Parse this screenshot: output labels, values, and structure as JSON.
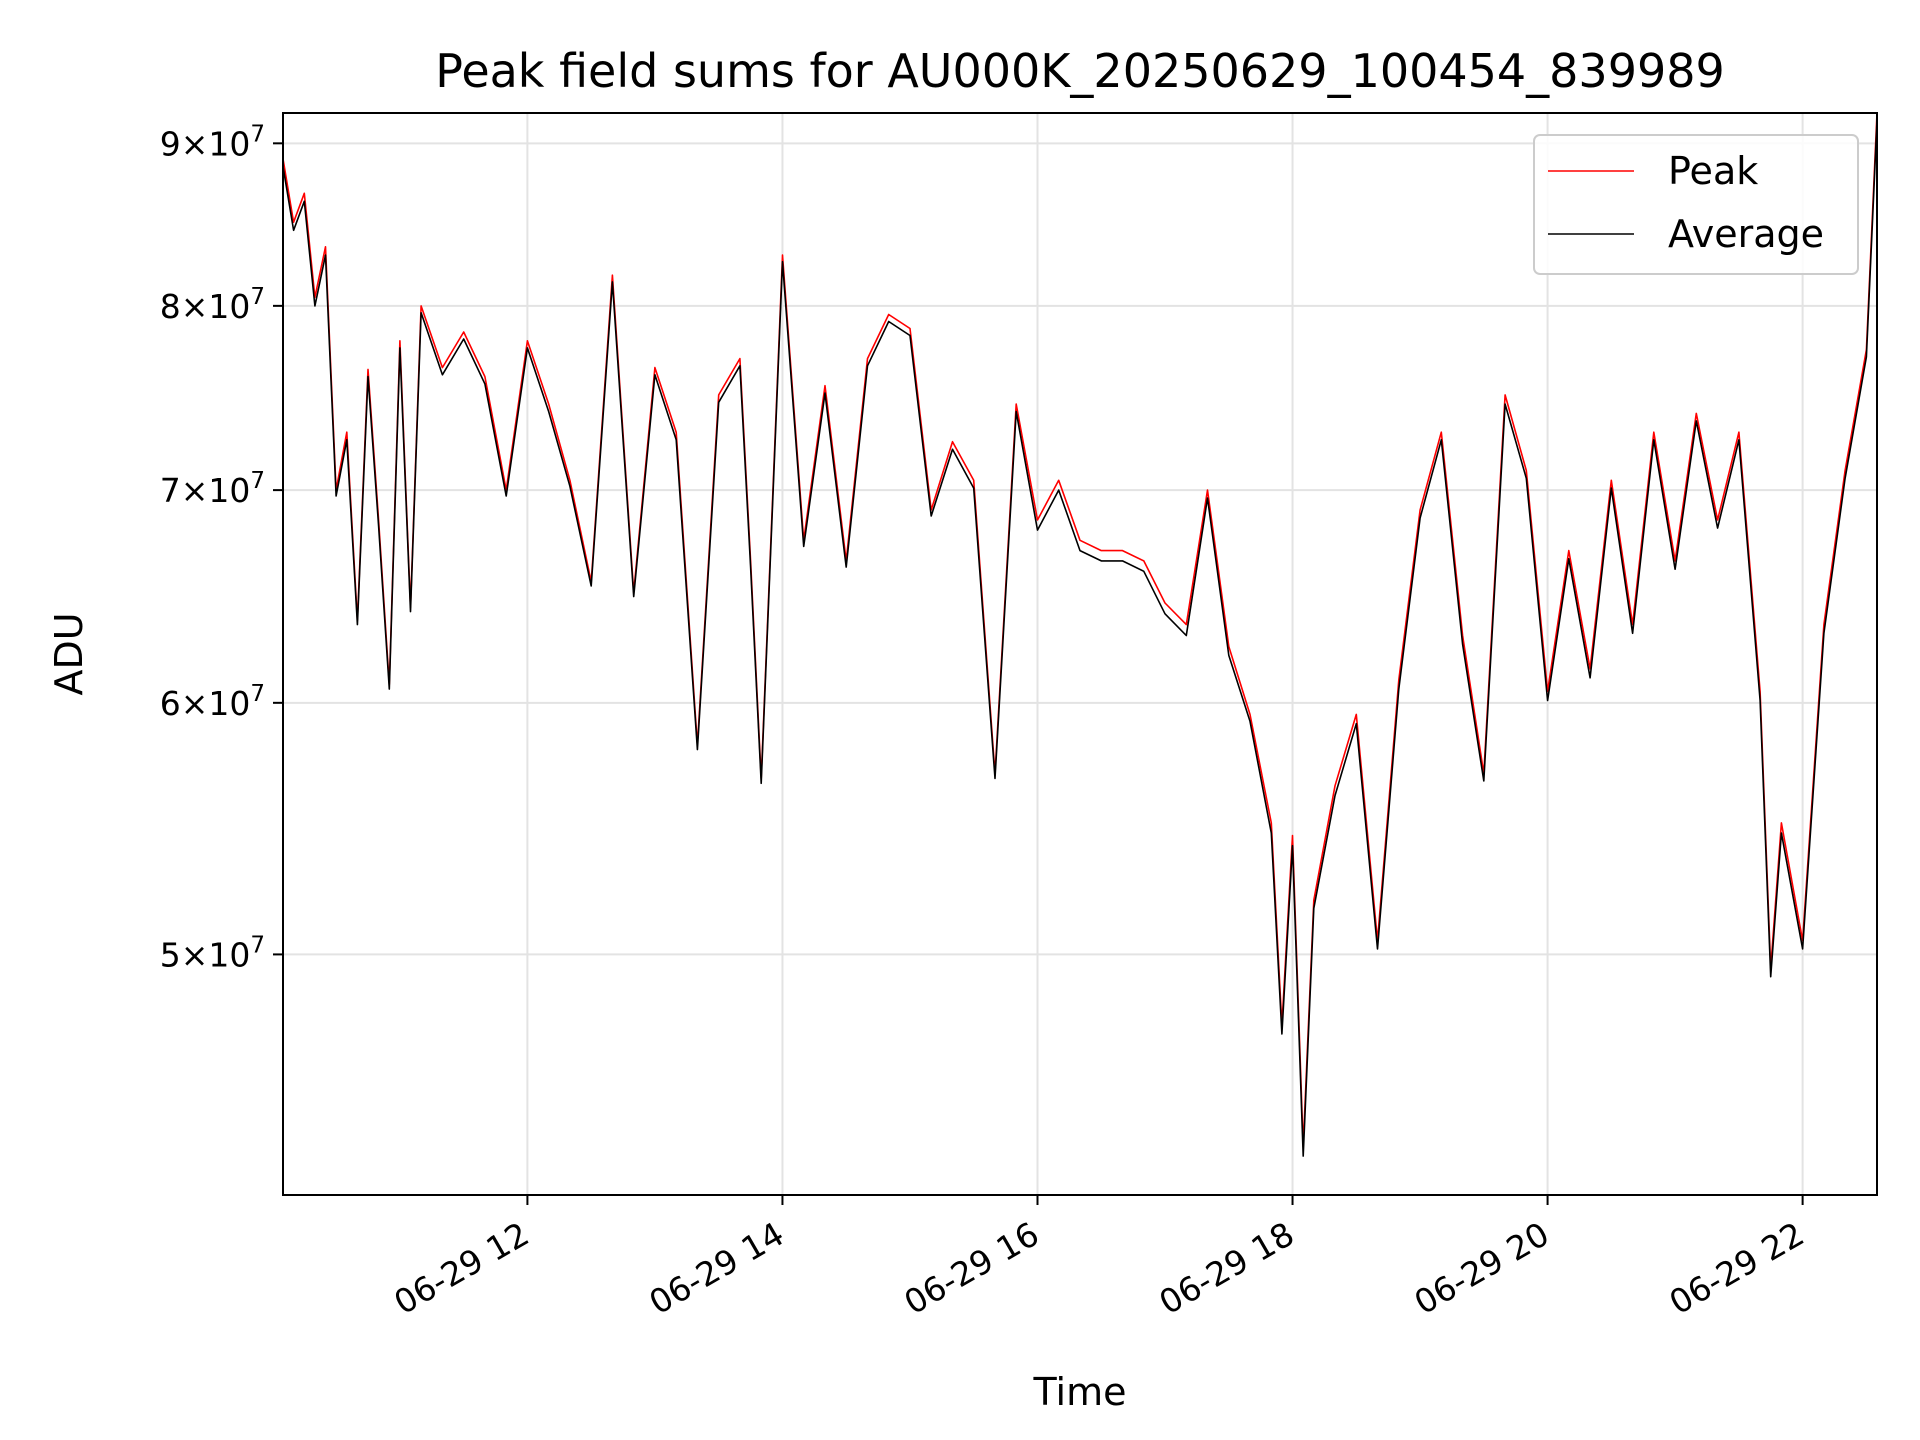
{
  "chart_data": {
    "type": "line",
    "title": "Peak field sums for AU000K_20250629_100454_839989",
    "xlabel": "Time",
    "ylabel": "ADU",
    "yscale": "log",
    "grid": true,
    "legend_position": "top-right",
    "xlim": [
      "2025-06-29 10:05",
      "2025-06-29 22:35"
    ],
    "ylim": [
      42000000,
      92000000
    ],
    "x_ticks": [
      {
        "value": "2025-06-29 12:00",
        "label": "06-29 12"
      },
      {
        "value": "2025-06-29 14:00",
        "label": "06-29 14"
      },
      {
        "value": "2025-06-29 16:00",
        "label": "06-29 16"
      },
      {
        "value": "2025-06-29 18:00",
        "label": "06-29 18"
      },
      {
        "value": "2025-06-29 20:00",
        "label": "06-29 20"
      },
      {
        "value": "2025-06-29 22:00",
        "label": "06-29 22"
      }
    ],
    "y_ticks": [
      {
        "value": 50000000,
        "mantissa": "5",
        "exponent": "7"
      },
      {
        "value": 60000000,
        "mantissa": "6",
        "exponent": "7"
      },
      {
        "value": 70000000,
        "mantissa": "7",
        "exponent": "7"
      },
      {
        "value": 80000000,
        "mantissa": "8",
        "exponent": "7"
      },
      {
        "value": 90000000,
        "mantissa": "9",
        "exponent": "7"
      }
    ],
    "series": [
      {
        "name": "Peak",
        "color": "#ff0000",
        "x": [
          "2025-06-29 10:05",
          "2025-06-29 10:10",
          "2025-06-29 10:15",
          "2025-06-29 10:20",
          "2025-06-29 10:25",
          "2025-06-29 10:30",
          "2025-06-29 10:35",
          "2025-06-29 10:40",
          "2025-06-29 10:45",
          "2025-06-29 10:50",
          "2025-06-29 10:55",
          "2025-06-29 11:00",
          "2025-06-29 11:05",
          "2025-06-29 11:10",
          "2025-06-29 11:20",
          "2025-06-29 11:30",
          "2025-06-29 11:40",
          "2025-06-29 11:50",
          "2025-06-29 12:00",
          "2025-06-29 12:10",
          "2025-06-29 12:20",
          "2025-06-29 12:30",
          "2025-06-29 12:40",
          "2025-06-29 12:50",
          "2025-06-29 13:00",
          "2025-06-29 13:10",
          "2025-06-29 13:20",
          "2025-06-29 13:30",
          "2025-06-29 13:40",
          "2025-06-29 13:45",
          "2025-06-29 13:50",
          "2025-06-29 14:00",
          "2025-06-29 14:10",
          "2025-06-29 14:20",
          "2025-06-29 14:30",
          "2025-06-29 14:40",
          "2025-06-29 14:50",
          "2025-06-29 15:00",
          "2025-06-29 15:10",
          "2025-06-29 15:20",
          "2025-06-29 15:30",
          "2025-06-29 15:40",
          "2025-06-29 15:50",
          "2025-06-29 16:00",
          "2025-06-29 16:10",
          "2025-06-29 16:20",
          "2025-06-29 16:30",
          "2025-06-29 16:40",
          "2025-06-29 16:50",
          "2025-06-29 17:00",
          "2025-06-29 17:10",
          "2025-06-29 17:20",
          "2025-06-29 17:30",
          "2025-06-29 17:40",
          "2025-06-29 17:50",
          "2025-06-29 17:55",
          "2025-06-29 18:00",
          "2025-06-29 18:05",
          "2025-06-29 18:10",
          "2025-06-29 18:20",
          "2025-06-29 18:30",
          "2025-06-29 18:40",
          "2025-06-29 18:50",
          "2025-06-29 19:00",
          "2025-06-29 19:10",
          "2025-06-29 19:20",
          "2025-06-29 19:30",
          "2025-06-29 19:40",
          "2025-06-29 19:50",
          "2025-06-29 20:00",
          "2025-06-29 20:10",
          "2025-06-29 20:20",
          "2025-06-29 20:30",
          "2025-06-29 20:40",
          "2025-06-29 20:50",
          "2025-06-29 21:00",
          "2025-06-29 21:10",
          "2025-06-29 21:20",
          "2025-06-29 21:30",
          "2025-06-29 21:40",
          "2025-06-29 21:45",
          "2025-06-29 21:50",
          "2025-06-29 22:00",
          "2025-06-29 22:10",
          "2025-06-29 22:20",
          "2025-06-29 22:30",
          "2025-06-29 22:35"
        ],
        "y": [
          89000000,
          85000000,
          86800000,
          80500000,
          83500000,
          70000000,
          73000000,
          63700000,
          76400000,
          68500000,
          60800000,
          78000000,
          64300000,
          80000000,
          76500000,
          78500000,
          76000000,
          70000000,
          78000000,
          74500000,
          70500000,
          65500000,
          81800000,
          65000000,
          76500000,
          73000000,
          58200000,
          75000000,
          77000000,
          66500000,
          56800000,
          83000000,
          67500000,
          75500000,
          66500000,
          77000000,
          79500000,
          78700000,
          69000000,
          72500000,
          70500000,
          57000000,
          74500000,
          68500000,
          70500000,
          67500000,
          67000000,
          67000000,
          66500000,
          64500000,
          63500000,
          70000000,
          62500000,
          59500000,
          55000000,
          47500000,
          54500000,
          43500000,
          52000000,
          56500000,
          59500000,
          50500000,
          61000000,
          69000000,
          73000000,
          63000000,
          57000000,
          75000000,
          71000000,
          60500000,
          67000000,
          61500000,
          70500000,
          63500000,
          73000000,
          66500000,
          74000000,
          68500000,
          73000000,
          60500000,
          49500000,
          55000000,
          50500000,
          63500000,
          71000000,
          77500000,
          92000000
        ]
      },
      {
        "name": "Average",
        "color": "#000000",
        "x": [
          "2025-06-29 10:05",
          "2025-06-29 10:10",
          "2025-06-29 10:15",
          "2025-06-29 10:20",
          "2025-06-29 10:25",
          "2025-06-29 10:30",
          "2025-06-29 10:35",
          "2025-06-29 10:40",
          "2025-06-29 10:45",
          "2025-06-29 10:50",
          "2025-06-29 10:55",
          "2025-06-29 11:00",
          "2025-06-29 11:05",
          "2025-06-29 11:10",
          "2025-06-29 11:20",
          "2025-06-29 11:30",
          "2025-06-29 11:40",
          "2025-06-29 11:50",
          "2025-06-29 12:00",
          "2025-06-29 12:10",
          "2025-06-29 12:20",
          "2025-06-29 12:30",
          "2025-06-29 12:40",
          "2025-06-29 12:50",
          "2025-06-29 13:00",
          "2025-06-29 13:10",
          "2025-06-29 13:20",
          "2025-06-29 13:30",
          "2025-06-29 13:40",
          "2025-06-29 13:45",
          "2025-06-29 13:50",
          "2025-06-29 14:00",
          "2025-06-29 14:10",
          "2025-06-29 14:20",
          "2025-06-29 14:30",
          "2025-06-29 14:40",
          "2025-06-29 14:50",
          "2025-06-29 15:00",
          "2025-06-29 15:10",
          "2025-06-29 15:20",
          "2025-06-29 15:30",
          "2025-06-29 15:40",
          "2025-06-29 15:50",
          "2025-06-29 16:00",
          "2025-06-29 16:10",
          "2025-06-29 16:20",
          "2025-06-29 16:30",
          "2025-06-29 16:40",
          "2025-06-29 16:50",
          "2025-06-29 17:00",
          "2025-06-29 17:10",
          "2025-06-29 17:20",
          "2025-06-29 17:30",
          "2025-06-29 17:40",
          "2025-06-29 17:50",
          "2025-06-29 17:55",
          "2025-06-29 18:00",
          "2025-06-29 18:05",
          "2025-06-29 18:10",
          "2025-06-29 18:20",
          "2025-06-29 18:30",
          "2025-06-29 18:40",
          "2025-06-29 18:50",
          "2025-06-29 19:00",
          "2025-06-29 19:10",
          "2025-06-29 19:20",
          "2025-06-29 19:30",
          "2025-06-29 19:40",
          "2025-06-29 19:50",
          "2025-06-29 20:00",
          "2025-06-29 20:10",
          "2025-06-29 20:20",
          "2025-06-29 20:30",
          "2025-06-29 20:40",
          "2025-06-29 20:50",
          "2025-06-29 21:00",
          "2025-06-29 21:10",
          "2025-06-29 21:20",
          "2025-06-29 21:30",
          "2025-06-29 21:40",
          "2025-06-29 21:45",
          "2025-06-29 21:50",
          "2025-06-29 22:00",
          "2025-06-29 22:10",
          "2025-06-29 22:20",
          "2025-06-29 22:30",
          "2025-06-29 22:35"
        ],
        "y": [
          88500000,
          84500000,
          86300000,
          80000000,
          83000000,
          69700000,
          72600000,
          63500000,
          76000000,
          68200000,
          60600000,
          77600000,
          64100000,
          79600000,
          76100000,
          78100000,
          75600000,
          69700000,
          77600000,
          74100000,
          70200000,
          65300000,
          81400000,
          64800000,
          76100000,
          72600000,
          58000000,
          74600000,
          76600000,
          66200000,
          56600000,
          82600000,
          67200000,
          75100000,
          66200000,
          76600000,
          79100000,
          78300000,
          68700000,
          72100000,
          70100000,
          56800000,
          74100000,
          68000000,
          70000000,
          67000000,
          66500000,
          66500000,
          66000000,
          64000000,
          63000000,
          69600000,
          62100000,
          59200000,
          54600000,
          47200000,
          54100000,
          43200000,
          51700000,
          56100000,
          59100000,
          50200000,
          60600000,
          68600000,
          72600000,
          62600000,
          56700000,
          74500000,
          70600000,
          60100000,
          66600000,
          61100000,
          70100000,
          63100000,
          72600000,
          66100000,
          73600000,
          68100000,
          72600000,
          60100000,
          49200000,
          54600000,
          50200000,
          63100000,
          70600000,
          77100000,
          91500000
        ]
      }
    ]
  }
}
